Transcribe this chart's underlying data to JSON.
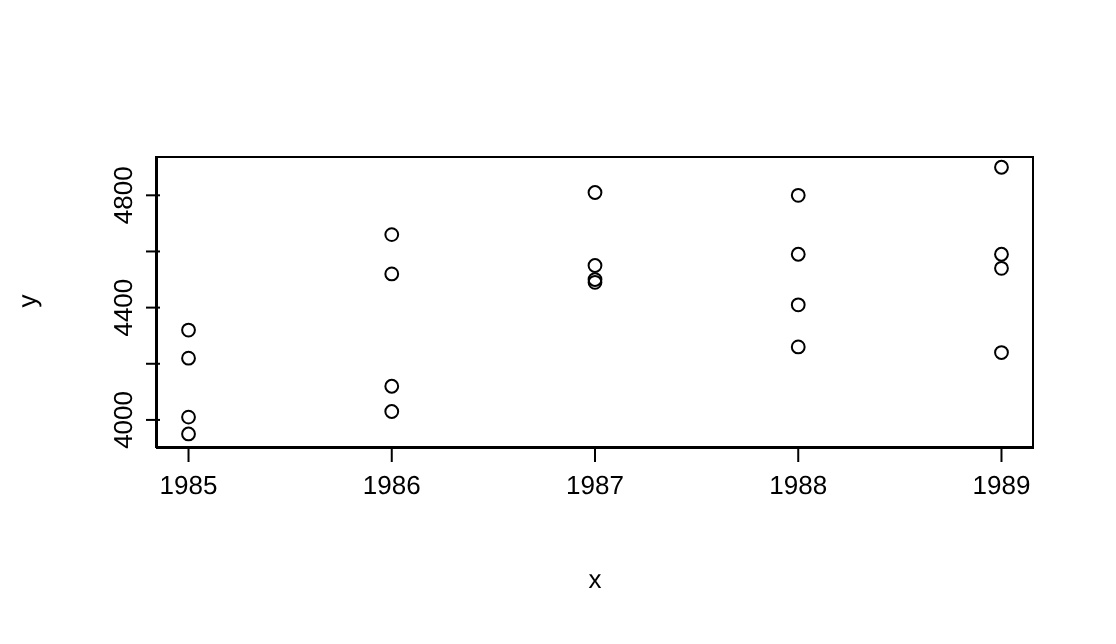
{
  "chart_data": {
    "type": "scatter",
    "xlabel": "x",
    "ylabel": "y",
    "marker": "circle",
    "color": "#000000",
    "x": [
      1985,
      1985,
      1985,
      1985,
      1986,
      1986,
      1986,
      1986,
      1987,
      1987,
      1987,
      1987,
      1988,
      1988,
      1988,
      1988,
      1989,
      1989,
      1989,
      1989
    ],
    "values": [
      4320,
      4220,
      4010,
      3950,
      4660,
      4520,
      4120,
      4030,
      4810,
      4550,
      4500,
      4490,
      4800,
      4590,
      4410,
      4260,
      4900,
      4590,
      4540,
      4240
    ],
    "xlim": [
      1984.84,
      1989.16
    ],
    "ylim": [
      3900,
      4940
    ],
    "xticks": [
      1985,
      1986,
      1987,
      1988,
      1989
    ],
    "yticks": [
      4000,
      {
        "value": 4200,
        "label": null
      },
      4400,
      {
        "value": 4600,
        "label": null
      },
      4800
    ]
  }
}
